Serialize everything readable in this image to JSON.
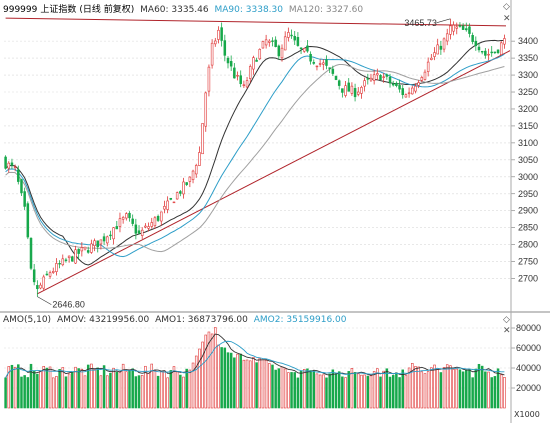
{
  "colors": {
    "up": "#e03535",
    "down": "#17a84b",
    "ma60": "#333333",
    "ma90": "#2e9ec8",
    "ma120": "#a0a0a0",
    "trend": "#b0232a",
    "amo5": "#333333",
    "amo10": "#2e9ec8",
    "grid": "#d9d9d9"
  },
  "header": {
    "code": "999999",
    "name": "上证指数",
    "period": "(日线 前复权)",
    "ma60": "MA60: 3335.46",
    "ma90": "MA90: 3338.30",
    "ma120": "MA120: 3327.60"
  },
  "sub_header": {
    "amo": "AMO(5,10)",
    "amov": "AMOV: 43219956.00",
    "amo1": "AMO1: 36873796.00",
    "amo2": "AMO2: 35159916.00"
  },
  "controls": {
    "diamond": "◇",
    "close": "✕",
    "diamond2": "◇",
    "close2": "✕"
  },
  "units_label": "X1000",
  "chart_data": [
    {
      "type": "candlestick",
      "title": "999999 上证指数 (日线 前复权)",
      "y_ticks": [
        2700,
        2750,
        2800,
        2850,
        2900,
        2950,
        3000,
        3050,
        3100,
        3150,
        3200,
        3250,
        3300,
        3350,
        3400
      ],
      "ylim": [
        2625,
        3480
      ],
      "annotations": [
        {
          "label": "2646.80",
          "value": 2646.8,
          "index": 10
        },
        {
          "label": "3465.73",
          "value": 3465.73,
          "index": 140
        }
      ],
      "ma_series": [
        {
          "name": "MA60",
          "last": 3335.46
        },
        {
          "name": "MA90",
          "last": 3338.3
        },
        {
          "name": "MA120",
          "last": 3327.6
        }
      ]
    },
    {
      "type": "bar",
      "title": "AMO(5,10)",
      "y_ticks": [
        20000,
        40000,
        60000,
        80000
      ],
      "ylim": [
        0,
        88000
      ],
      "unit": "X1000",
      "series": [
        {
          "name": "AMOV",
          "last": 43219956.0
        },
        {
          "name": "AMO1",
          "last": 36873796.0
        },
        {
          "name": "AMO2",
          "last": 35159916.0
        }
      ]
    }
  ]
}
